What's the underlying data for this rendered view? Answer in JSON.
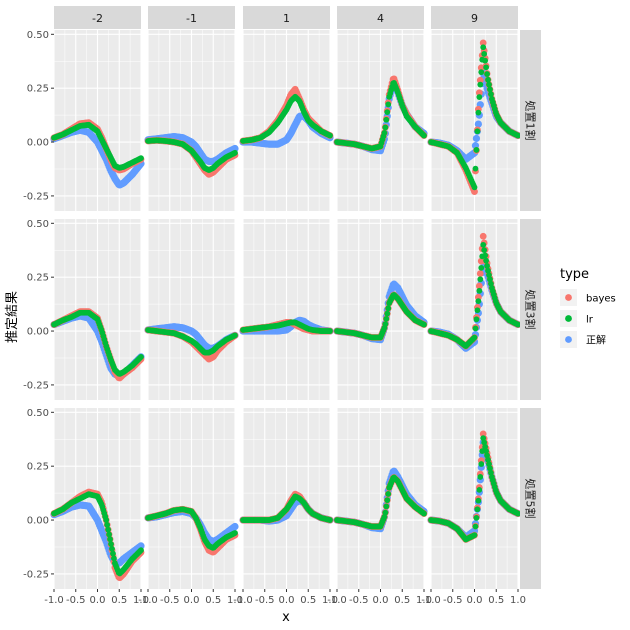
{
  "chart_data": {
    "type": "scatter",
    "xlabel": "x",
    "ylabel": "推定結果",
    "xlim": [
      -1.0,
      1.0
    ],
    "ylim": [
      -0.32,
      0.52
    ],
    "x_ticks": [
      -1.0,
      -0.5,
      0.0,
      0.5,
      1.0
    ],
    "x_tick_labels": [
      "-1.0",
      "-0.5",
      "0.0",
      "0.5",
      "1.0"
    ],
    "y_ticks": [
      -0.25,
      0.0,
      0.25,
      0.5
    ],
    "y_tick_labels": [
      "-0.25",
      "0.00",
      "0.25",
      "0.50"
    ],
    "grid": true,
    "legend_position": "right",
    "col_facets": [
      "-2",
      "-1",
      "1",
      "4",
      "9"
    ],
    "row_facets": [
      "処置1割",
      "処置3割",
      "処置5割"
    ],
    "legend": {
      "title": "type",
      "entries": [
        {
          "label": "bayes",
          "color": "#F8766D"
        },
        {
          "label": "lr",
          "color": "#00BA38"
        },
        {
          "label": "正解",
          "color": "#619CFF"
        }
      ]
    },
    "x_sample": [
      -1.0,
      -0.8,
      -0.6,
      -0.4,
      -0.2,
      0.0,
      0.1,
      0.2,
      0.3,
      0.4,
      0.5,
      0.6,
      0.8,
      1.0
    ],
    "panels": [
      {
        "row": 0,
        "col": 0,
        "truth": [
          0.015,
          0.03,
          0.045,
          0.055,
          0.045,
          0.0,
          -0.04,
          -0.08,
          -0.13,
          -0.17,
          -0.2,
          -0.19,
          -0.15,
          -0.1
        ],
        "bayes": [
          0.02,
          0.035,
          0.06,
          0.085,
          0.09,
          0.06,
          0.02,
          -0.03,
          -0.08,
          -0.12,
          -0.13,
          -0.125,
          -0.1,
          -0.08
        ],
        "lr": [
          0.02,
          0.035,
          0.055,
          0.075,
          0.08,
          0.05,
          0.01,
          -0.03,
          -0.07,
          -0.11,
          -0.12,
          -0.115,
          -0.095,
          -0.075
        ]
      },
      {
        "row": 0,
        "col": 1,
        "truth": [
          0.01,
          0.015,
          0.02,
          0.025,
          0.02,
          0.0,
          -0.02,
          -0.05,
          -0.08,
          -0.09,
          -0.09,
          -0.08,
          -0.05,
          -0.03
        ],
        "bayes": [
          0.005,
          0.008,
          0.005,
          0.0,
          -0.01,
          -0.04,
          -0.07,
          -0.1,
          -0.13,
          -0.15,
          -0.14,
          -0.12,
          -0.08,
          -0.06
        ],
        "lr": [
          0.005,
          0.008,
          0.005,
          0.0,
          -0.01,
          -0.04,
          -0.065,
          -0.09,
          -0.12,
          -0.13,
          -0.12,
          -0.1,
          -0.07,
          -0.05
        ]
      },
      {
        "row": 0,
        "col": 2,
        "truth": [
          0.0,
          0.0,
          -0.005,
          -0.01,
          -0.01,
          0.01,
          0.04,
          0.08,
          0.12,
          0.12,
          0.1,
          0.07,
          0.04,
          0.02
        ],
        "bayes": [
          0.005,
          0.01,
          0.02,
          0.05,
          0.1,
          0.17,
          0.22,
          0.245,
          0.2,
          0.15,
          0.11,
          0.09,
          0.05,
          0.03
        ],
        "lr": [
          0.005,
          0.01,
          0.02,
          0.045,
          0.09,
          0.15,
          0.19,
          0.21,
          0.19,
          0.14,
          0.1,
          0.08,
          0.05,
          0.03
        ]
      },
      {
        "row": 0,
        "col": 3,
        "truth": [
          0.0,
          -0.005,
          -0.01,
          -0.02,
          -0.035,
          -0.04,
          0.02,
          0.2,
          0.28,
          0.23,
          0.17,
          0.13,
          0.07,
          0.04
        ],
        "bayes": [
          0.0,
          -0.005,
          -0.01,
          -0.02,
          -0.03,
          -0.02,
          0.05,
          0.22,
          0.3,
          0.24,
          0.17,
          0.13,
          0.07,
          0.03
        ],
        "lr": [
          0.0,
          -0.005,
          -0.01,
          -0.02,
          -0.03,
          -0.02,
          0.05,
          0.21,
          0.28,
          0.23,
          0.17,
          0.12,
          0.07,
          0.03
        ]
      },
      {
        "row": 0,
        "col": 4,
        "truth": [
          0.0,
          -0.005,
          -0.015,
          -0.04,
          -0.08,
          -0.05,
          0.1,
          0.32,
          0.24,
          0.18,
          0.12,
          0.09,
          0.05,
          0.03
        ],
        "bayes": [
          0.0,
          -0.01,
          -0.02,
          -0.05,
          -0.13,
          -0.23,
          0.2,
          0.46,
          0.3,
          0.2,
          0.13,
          0.09,
          0.05,
          0.03
        ],
        "lr": [
          0.0,
          -0.01,
          -0.02,
          -0.05,
          -0.12,
          -0.21,
          0.18,
          0.44,
          0.3,
          0.2,
          0.13,
          0.09,
          0.05,
          0.03
        ]
      },
      {
        "row": 1,
        "col": 0,
        "truth": [
          0.03,
          0.045,
          0.06,
          0.07,
          0.06,
          0.0,
          -0.05,
          -0.11,
          -0.17,
          -0.2,
          -0.21,
          -0.2,
          -0.16,
          -0.12
        ],
        "bayes": [
          0.03,
          0.05,
          0.07,
          0.09,
          0.09,
          0.06,
          0.0,
          -0.07,
          -0.13,
          -0.19,
          -0.22,
          -0.2,
          -0.17,
          -0.13
        ],
        "lr": [
          0.03,
          0.05,
          0.065,
          0.085,
          0.085,
          0.055,
          0.0,
          -0.07,
          -0.13,
          -0.18,
          -0.2,
          -0.19,
          -0.16,
          -0.12
        ]
      },
      {
        "row": 1,
        "col": 1,
        "truth": [
          0.005,
          0.01,
          0.015,
          0.02,
          0.015,
          0.0,
          -0.015,
          -0.04,
          -0.065,
          -0.08,
          -0.08,
          -0.07,
          -0.04,
          -0.02
        ],
        "bayes": [
          0.005,
          0.0,
          -0.005,
          -0.01,
          -0.025,
          -0.05,
          -0.07,
          -0.09,
          -0.11,
          -0.13,
          -0.12,
          -0.09,
          -0.05,
          -0.02
        ],
        "lr": [
          0.005,
          0.0,
          -0.005,
          -0.01,
          -0.025,
          -0.045,
          -0.06,
          -0.08,
          -0.1,
          -0.1,
          -0.09,
          -0.07,
          -0.04,
          -0.02
        ]
      },
      {
        "row": 1,
        "col": 2,
        "truth": [
          0.0,
          0.0,
          0.0,
          0.0,
          0.0,
          0.005,
          0.02,
          0.04,
          0.05,
          0.045,
          0.03,
          0.02,
          0.005,
          0.0
        ],
        "bayes": [
          0.005,
          0.01,
          0.015,
          0.02,
          0.03,
          0.04,
          0.04,
          0.03,
          0.02,
          0.01,
          0.005,
          0.0,
          0.0,
          0.0
        ],
        "lr": [
          0.005,
          0.01,
          0.015,
          0.02,
          0.025,
          0.035,
          0.04,
          0.04,
          0.03,
          0.02,
          0.01,
          0.005,
          0.0,
          0.0
        ]
      },
      {
        "row": 1,
        "col": 3,
        "truth": [
          0.0,
          -0.005,
          -0.01,
          -0.02,
          -0.035,
          -0.04,
          0.02,
          0.16,
          0.22,
          0.2,
          0.16,
          0.12,
          0.07,
          0.04
        ],
        "bayes": [
          0.0,
          -0.005,
          -0.01,
          -0.02,
          -0.03,
          -0.03,
          0.02,
          0.13,
          0.17,
          0.15,
          0.12,
          0.09,
          0.05,
          0.03
        ],
        "lr": [
          0.0,
          -0.005,
          -0.01,
          -0.02,
          -0.03,
          -0.03,
          0.02,
          0.13,
          0.17,
          0.15,
          0.12,
          0.09,
          0.05,
          0.03
        ]
      },
      {
        "row": 1,
        "col": 4,
        "truth": [
          0.0,
          -0.005,
          -0.015,
          -0.04,
          -0.08,
          -0.05,
          0.1,
          0.32,
          0.26,
          0.19,
          0.13,
          0.09,
          0.05,
          0.03
        ],
        "bayes": [
          0.0,
          -0.01,
          -0.02,
          -0.04,
          -0.07,
          -0.03,
          0.18,
          0.44,
          0.3,
          0.2,
          0.13,
          0.09,
          0.05,
          0.03
        ],
        "lr": [
          0.0,
          -0.01,
          -0.02,
          -0.04,
          -0.07,
          -0.03,
          0.16,
          0.4,
          0.29,
          0.2,
          0.13,
          0.09,
          0.05,
          0.03
        ]
      },
      {
        "row": 2,
        "col": 0,
        "truth": [
          0.025,
          0.04,
          0.06,
          0.07,
          0.065,
          0.0,
          -0.05,
          -0.1,
          -0.16,
          -0.2,
          -0.2,
          -0.18,
          -0.15,
          -0.12
        ],
        "bayes": [
          0.03,
          0.05,
          0.08,
          0.11,
          0.13,
          0.12,
          0.08,
          0.0,
          -0.1,
          -0.22,
          -0.27,
          -0.25,
          -0.19,
          -0.15
        ],
        "lr": [
          0.03,
          0.05,
          0.08,
          0.1,
          0.12,
          0.11,
          0.07,
          0.0,
          -0.1,
          -0.2,
          -0.25,
          -0.23,
          -0.18,
          -0.14
        ]
      },
      {
        "row": 2,
        "col": 1,
        "truth": [
          0.01,
          0.015,
          0.025,
          0.035,
          0.04,
          0.03,
          0.01,
          -0.02,
          -0.06,
          -0.09,
          -0.1,
          -0.09,
          -0.06,
          -0.03
        ],
        "bayes": [
          0.01,
          0.02,
          0.03,
          0.045,
          0.05,
          0.04,
          0.01,
          -0.04,
          -0.1,
          -0.14,
          -0.15,
          -0.13,
          -0.09,
          -0.07
        ],
        "lr": [
          0.01,
          0.02,
          0.03,
          0.045,
          0.05,
          0.04,
          0.01,
          -0.035,
          -0.09,
          -0.12,
          -0.13,
          -0.11,
          -0.08,
          -0.06
        ]
      },
      {
        "row": 2,
        "col": 2,
        "truth": [
          0.0,
          0.0,
          0.0,
          -0.005,
          0.0,
          0.02,
          0.05,
          0.08,
          0.09,
          0.08,
          0.05,
          0.03,
          0.01,
          0.0
        ],
        "bayes": [
          0.0,
          0.0,
          0.0,
          0.0,
          0.01,
          0.05,
          0.09,
          0.12,
          0.11,
          0.08,
          0.05,
          0.03,
          0.01,
          0.0
        ],
        "lr": [
          0.0,
          0.0,
          0.0,
          0.0,
          0.01,
          0.05,
          0.08,
          0.11,
          0.1,
          0.08,
          0.05,
          0.03,
          0.01,
          0.0
        ]
      },
      {
        "row": 2,
        "col": 3,
        "truth": [
          0.0,
          -0.005,
          -0.01,
          -0.02,
          -0.035,
          -0.04,
          0.02,
          0.17,
          0.23,
          0.2,
          0.16,
          0.12,
          0.07,
          0.04
        ],
        "bayes": [
          0.0,
          -0.005,
          -0.01,
          -0.02,
          -0.03,
          -0.03,
          0.02,
          0.15,
          0.2,
          0.18,
          0.14,
          0.1,
          0.06,
          0.03
        ],
        "lr": [
          0.0,
          -0.005,
          -0.01,
          -0.02,
          -0.03,
          -0.03,
          0.02,
          0.15,
          0.2,
          0.18,
          0.14,
          0.1,
          0.06,
          0.03
        ]
      },
      {
        "row": 2,
        "col": 4,
        "truth": [
          0.0,
          -0.005,
          -0.015,
          -0.04,
          -0.08,
          -0.05,
          0.1,
          0.36,
          0.28,
          0.2,
          0.13,
          0.09,
          0.05,
          0.03
        ],
        "bayes": [
          0.0,
          -0.005,
          -0.015,
          -0.04,
          -0.09,
          -0.07,
          0.12,
          0.4,
          0.3,
          0.2,
          0.13,
          0.09,
          0.05,
          0.03
        ],
        "lr": [
          0.0,
          -0.005,
          -0.015,
          -0.04,
          -0.09,
          -0.07,
          0.11,
          0.38,
          0.29,
          0.2,
          0.13,
          0.09,
          0.05,
          0.03
        ]
      }
    ]
  }
}
